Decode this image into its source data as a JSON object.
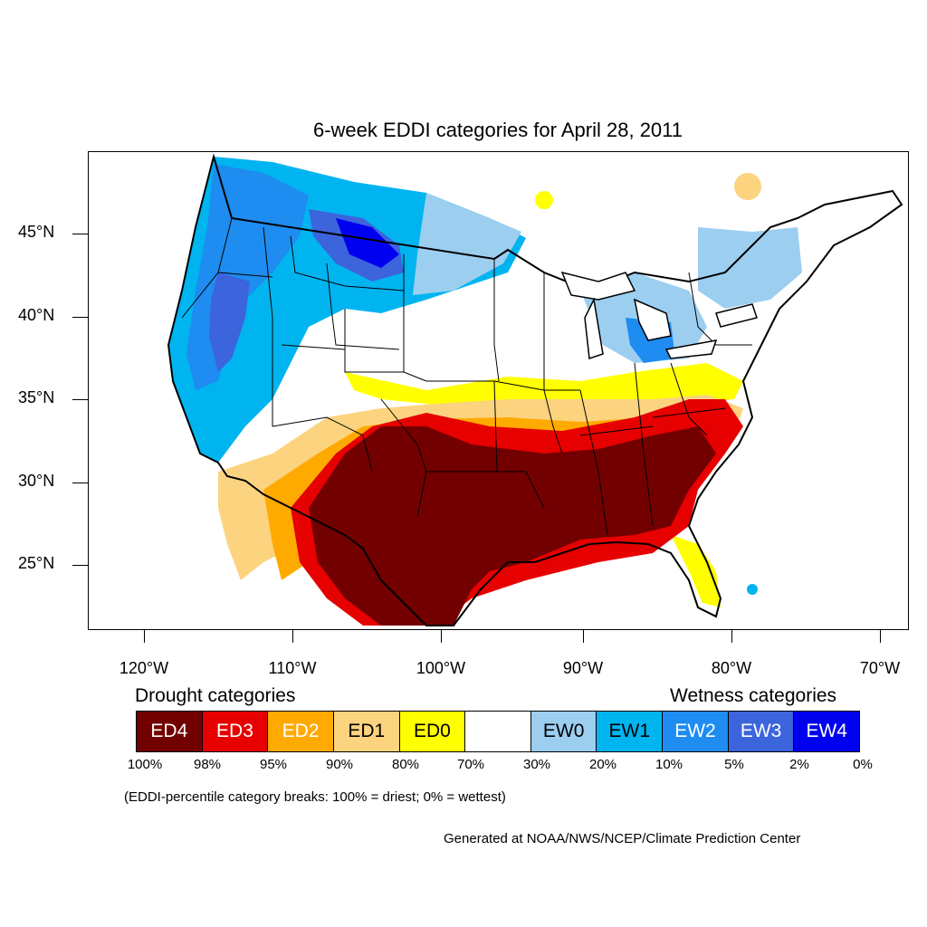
{
  "title": "6-week EDDI categories for April 28, 2011",
  "latitude_labels": [
    "45°N",
    "40°N",
    "35°N",
    "30°N",
    "25°N"
  ],
  "longitude_labels": [
    "120°W",
    "110°W",
    "100°W",
    "90°W",
    "80°W",
    "70°W"
  ],
  "legend": {
    "drought_heading": "Drought categories",
    "wetness_heading": "Wetness categories",
    "categories": [
      {
        "label": "ED4",
        "color": "#730000",
        "text_color": "#ffffff"
      },
      {
        "label": "ED3",
        "color": "#e60000",
        "text_color": "#ffffff"
      },
      {
        "label": "ED2",
        "color": "#ffaa00",
        "text_color": "#ffffff"
      },
      {
        "label": "ED1",
        "color": "#fcd37f",
        "text_color": "#000000"
      },
      {
        "label": "ED0",
        "color": "#ffff00",
        "text_color": "#000000"
      },
      {
        "label": "",
        "color": "#ffffff",
        "text_color": "#000000"
      },
      {
        "label": "EW0",
        "color": "#9ccef0",
        "text_color": "#000000"
      },
      {
        "label": "EW1",
        "color": "#00b4f0",
        "text_color": "#000000"
      },
      {
        "label": "EW2",
        "color": "#1e8cf0",
        "text_color": "#ffffff"
      },
      {
        "label": "EW3",
        "color": "#3c64dc",
        "text_color": "#ffffff"
      },
      {
        "label": "EW4",
        "color": "#0000f0",
        "text_color": "#ffffff"
      }
    ],
    "percentiles": [
      "100%",
      "98%",
      "95%",
      "90%",
      "80%",
      "70%",
      "30%",
      "20%",
      "10%",
      "5%",
      "2%",
      "0%"
    ]
  },
  "note": "(EDDI-percentile category breaks: 100% = driest; 0% = wettest)",
  "credit": "Generated at NOAA/NWS/NCEP/Climate Prediction Center"
}
